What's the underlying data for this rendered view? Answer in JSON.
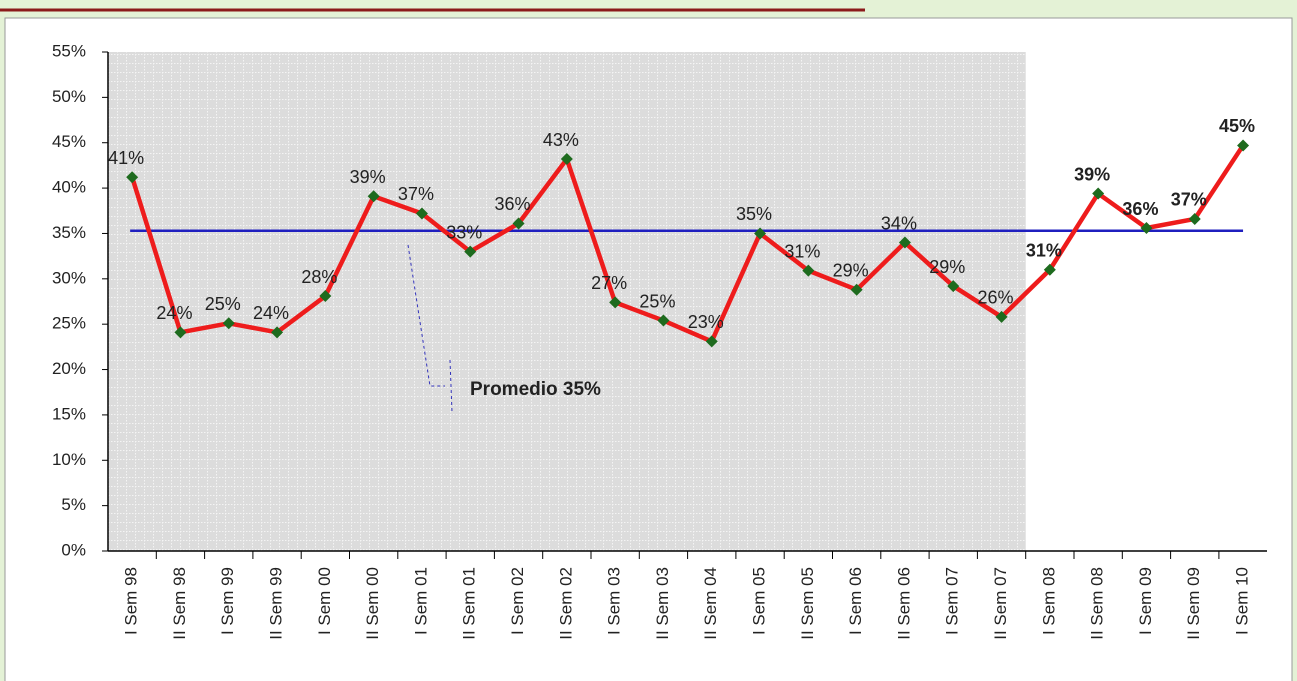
{
  "chart_data": {
    "type": "line",
    "categories": [
      "I Sem 98",
      "II Sem 98",
      "I Sem 99",
      "II Sem 99",
      "I Sem 00",
      "II Sem 00",
      "I Sem 01",
      "II Sem 01",
      "I Sem 02",
      "II Sem 02",
      "I Sem 03",
      "II Sem 03",
      "II Sem 04",
      "I Sem 05",
      "II Sem 05",
      "I Sem 06",
      "II Sem 06",
      "I Sem 07",
      "II Sem 07",
      "I Sem 08",
      "II Sem 08",
      "I Sem 09",
      "II Sem 09",
      "I Sem 10"
    ],
    "series": [
      {
        "color": "#ee1c1c",
        "marker_color": "#1e6b1e",
        "values": [
          41.2,
          24.1,
          25.1,
          24.1,
          28.1,
          39.1,
          37.2,
          33,
          36.1,
          43.2,
          27.4,
          25.4,
          23.1,
          35,
          30.9,
          28.8,
          34,
          29.2,
          25.8,
          31,
          39.4,
          35.6,
          36.6,
          44.7
        ],
        "value_labels": [
          "41%",
          "24%",
          "25%",
          "24%",
          "28%",
          "39%",
          "37%",
          "33%",
          "36%",
          "43%",
          "27%",
          "25%",
          "23%",
          "35%",
          "31%",
          "29%",
          "34%",
          "29%",
          "26%",
          "31%",
          "39%",
          "36%",
          "37%",
          "45%"
        ]
      }
    ],
    "average": {
      "value": 35.3,
      "label": "Promedio 35%",
      "color": "#1f1fbf"
    },
    "ylim": [
      0,
      55
    ],
    "yticks": [
      {
        "value": 0,
        "label": "0%"
      },
      {
        "value": 5,
        "label": "5%"
      },
      {
        "value": 10,
        "label": "10%"
      },
      {
        "value": 15,
        "label": "15%"
      },
      {
        "value": 20,
        "label": "20%"
      },
      {
        "value": 25,
        "label": "25%"
      },
      {
        "value": 30,
        "label": "30%"
      },
      {
        "value": 35,
        "label": "35%"
      },
      {
        "value": 40,
        "label": "40%"
      },
      {
        "value": 45,
        "label": "45%"
      },
      {
        "value": 50,
        "label": "50%"
      },
      {
        "value": 55,
        "label": "55%"
      }
    ],
    "grid": false
  }
}
